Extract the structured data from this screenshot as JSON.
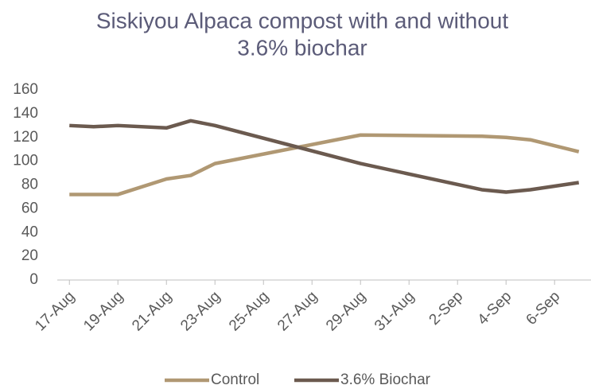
{
  "chart_data": {
    "type": "line",
    "title": [
      "Siskiyou Alpaca compost with and without",
      "3.6% biochar"
    ],
    "x": [
      "17-Aug",
      "18-Aug",
      "19-Aug",
      "21-Aug",
      "22-Aug",
      "23-Aug",
      "29-Aug",
      "3-Sep",
      "4-Sep",
      "5-Sep",
      "7-Sep"
    ],
    "series": [
      {
        "name": "Control",
        "color": "#b09873",
        "values": [
          72,
          72,
          72,
          85,
          88,
          98,
          122,
          121,
          120,
          118,
          108
        ]
      },
      {
        "name": "3.6% Biochar",
        "color": "#6b5a4f",
        "values": [
          130,
          129,
          130,
          128,
          134,
          130,
          98,
          76,
          74,
          76,
          82
        ]
      }
    ],
    "xlim": [
      "17-Aug",
      "7-Sep"
    ],
    "xticks": [
      "17-Aug",
      "19-Aug",
      "21-Aug",
      "23-Aug",
      "25-Aug",
      "27-Aug",
      "29-Aug",
      "31-Aug",
      "2-Sep",
      "4-Sep",
      "6-Sep"
    ],
    "ylim": [
      0,
      160
    ],
    "yticks": [
      0,
      20,
      40,
      60,
      80,
      100,
      120,
      140,
      160
    ],
    "grid": false,
    "legend": "bottom"
  }
}
